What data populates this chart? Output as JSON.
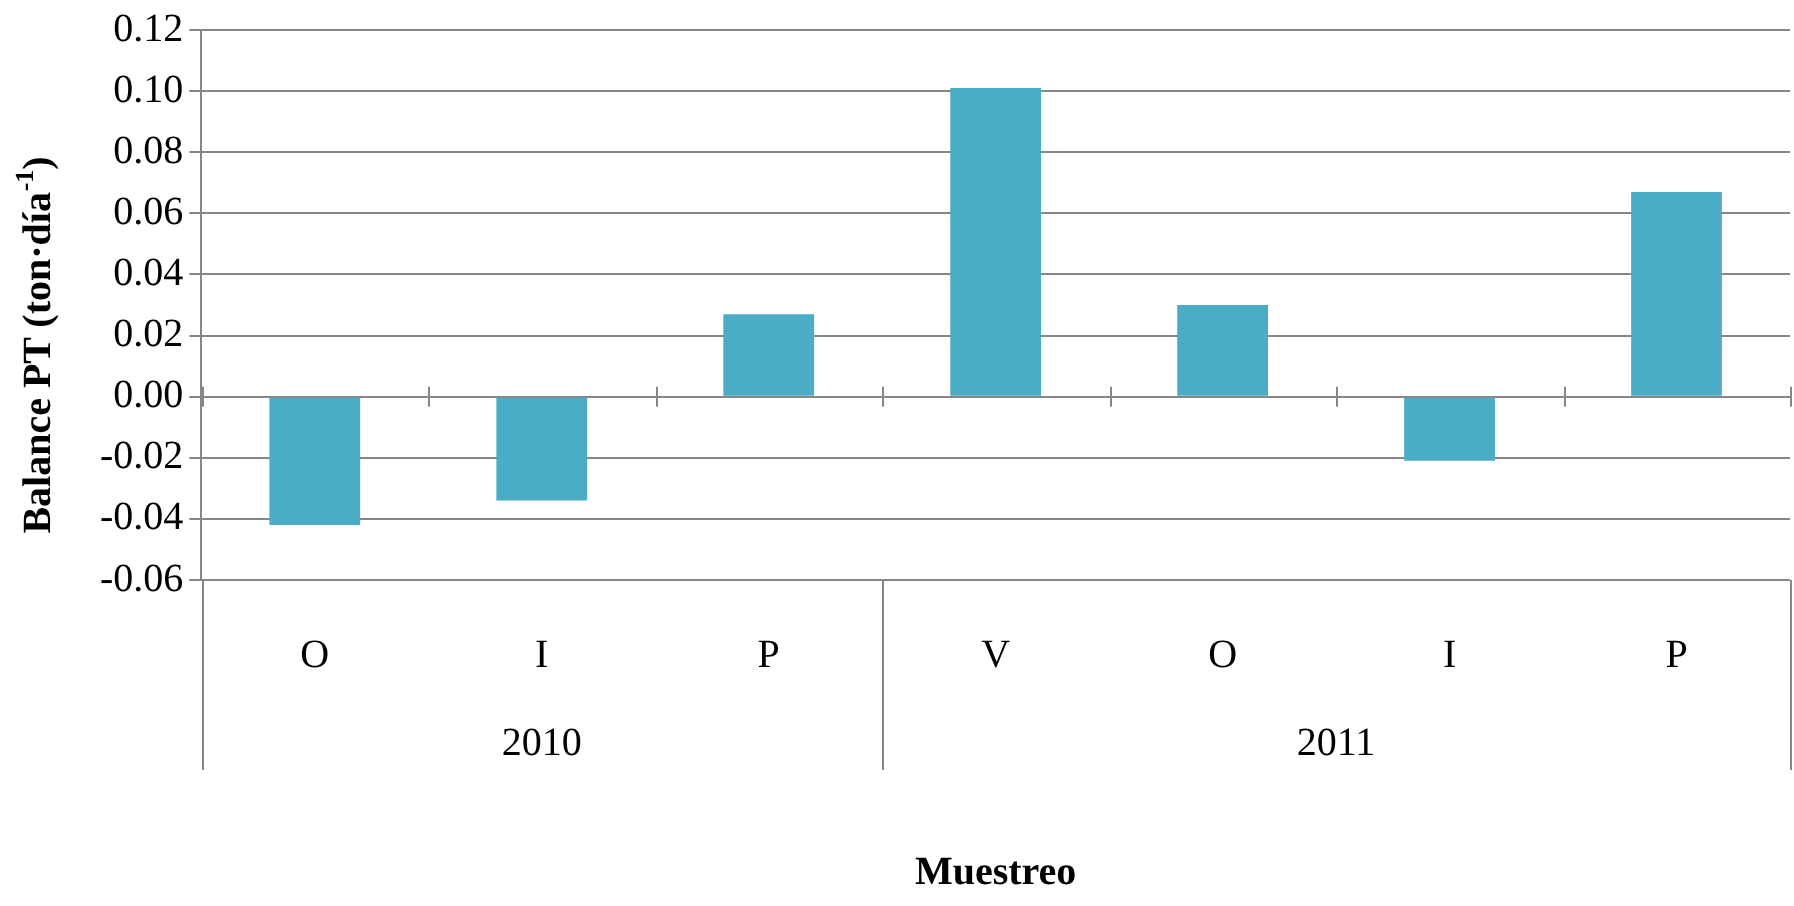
{
  "chart_data": {
    "type": "bar",
    "xlabel": "Muestreo",
    "ylabel": "Balance PT (ton·día$^{-1}$)",
    "categories": [
      "O",
      "I",
      "P",
      "V",
      "O",
      "I",
      "P"
    ],
    "values": [
      -0.042,
      -0.034,
      0.027,
      0.101,
      0.03,
      -0.021,
      0.067
    ],
    "color": "#4bacc6",
    "ylim": [
      -0.06,
      0.12
    ],
    "yticks": [
      {
        "value": -0.06,
        "label": "-0.06"
      },
      {
        "value": -0.04,
        "label": "-0.04"
      },
      {
        "value": -0.02,
        "label": "-0.02"
      },
      {
        "value": 0,
        "label": "0.00"
      },
      {
        "value": 0.02,
        "label": "0.02"
      },
      {
        "value": 0.04,
        "label": "0.04"
      },
      {
        "value": 0.06,
        "label": "0.06"
      },
      {
        "value": 0.08,
        "label": "0.08"
      },
      {
        "value": 0.1,
        "label": "0.10"
      },
      {
        "value": 0.12,
        "label": "0.12"
      }
    ],
    "grid": "y",
    "annotations": [
      "2010",
      "2011"
    ]
  }
}
